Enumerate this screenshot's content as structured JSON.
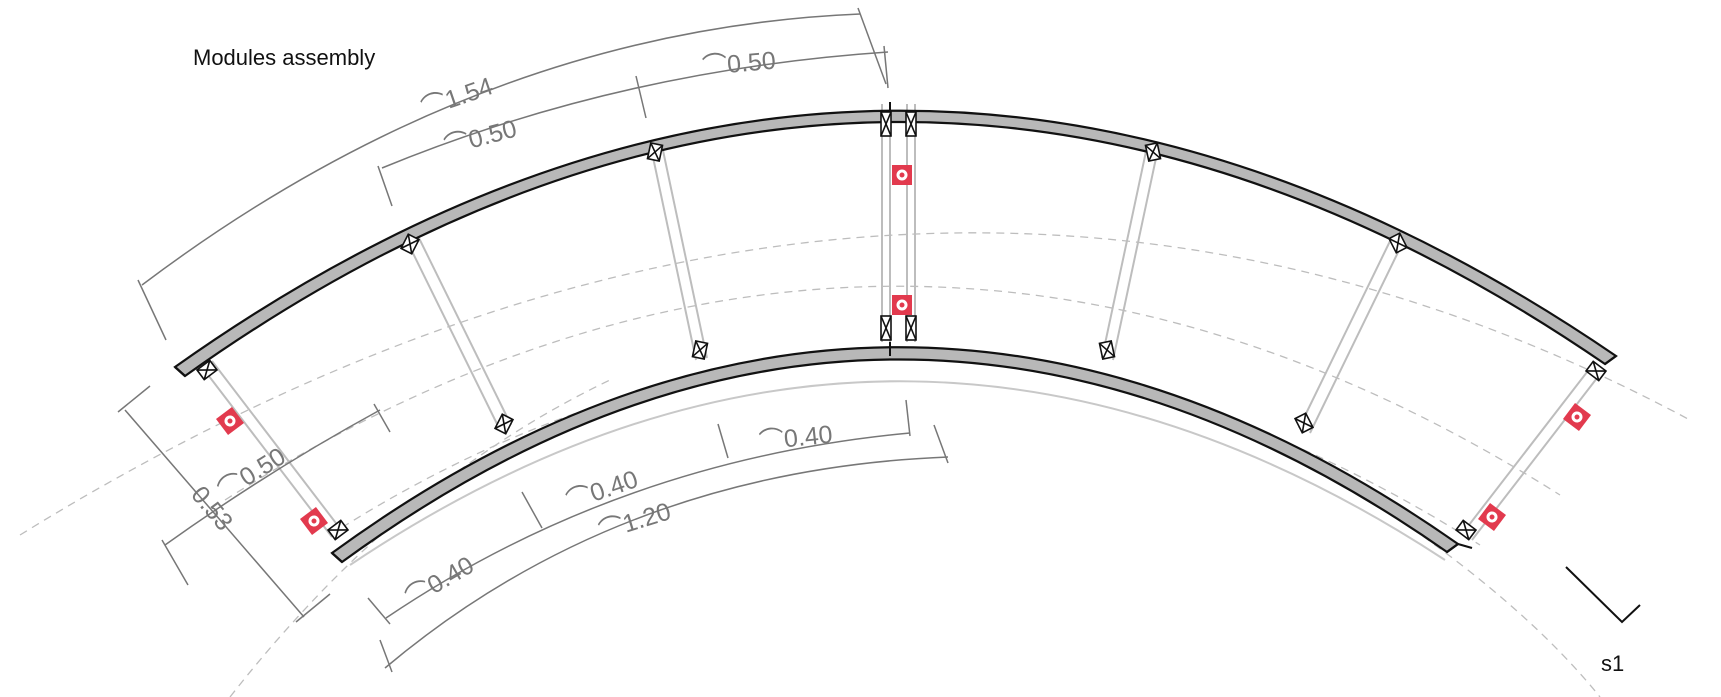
{
  "title": "Modules assembly",
  "section_label": "s1",
  "outer_dimensions": {
    "total": "⌒1.54",
    "segment_1": "⌒0.50",
    "segment_2": "⌒0.50"
  },
  "inner_dimensions": {
    "total": "⌒1.20",
    "segment_1": "⌒0.40",
    "segment_2": "⌒0.40",
    "segment_3": "⌒0.40"
  },
  "side_dimensions": {
    "width": "0.53",
    "inner_arc": "⌒0.50"
  },
  "colors": {
    "wall_fill": "#b8b8b8",
    "wall_stroke": "#111111",
    "dim_line": "#777777",
    "guide_dashed": "#bdbdbd",
    "connector_red": "#e23a4e"
  },
  "icons": {
    "connector": "red-bolt-connector-icon"
  }
}
